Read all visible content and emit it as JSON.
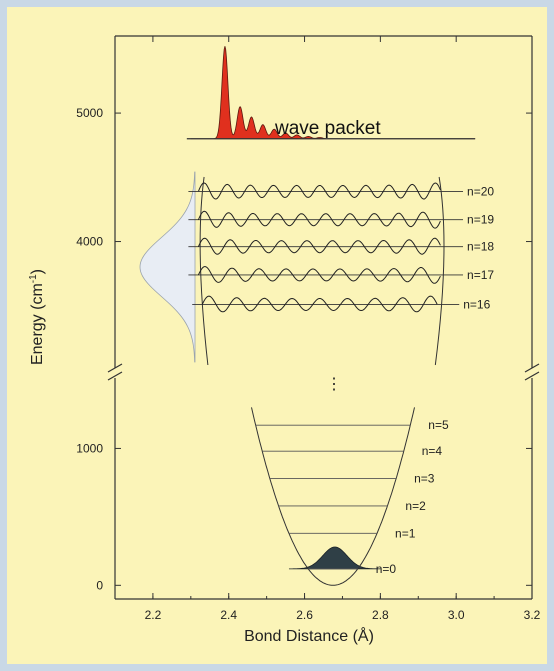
{
  "colors": {
    "page_border": "#c9d8e6",
    "panel_background": "#fbf4b8",
    "wave_packet_fill": "#e0301e",
    "ground_state_fill": "#2f3f46",
    "probe_profile_fill": "#e8edf4",
    "line": "#333333"
  },
  "chart_data": {
    "type": "line",
    "title": "",
    "xlabel": "Bond Distance (Å)",
    "ylabel": "Energy (cm",
    "ylabel_superscript": "-1",
    "ylabel_close": ")",
    "xlim": [
      2.1,
      3.2
    ],
    "x_ticks": [
      "2.2",
      "2.4",
      "2.6",
      "2.8",
      "3.0",
      "3.2"
    ],
    "y_axis_broken": true,
    "y_ticks_lower": [
      "0",
      "1000"
    ],
    "y_ticks_upper": [
      "4000",
      "5000"
    ],
    "ylim_lower": [
      -100,
      1500
    ],
    "ylim_upper": [
      3000,
      5600
    ],
    "annotation": "wave packet",
    "continuation_marker": "⋮",
    "wave_packet": {
      "baseline_energy": 4800,
      "x_start": 2.3,
      "x_end": 3.05,
      "peaks": [
        {
          "x": 2.39,
          "height": 720
        },
        {
          "x": 2.43,
          "height": 250
        },
        {
          "x": 2.46,
          "height": 170
        },
        {
          "x": 2.49,
          "height": 110
        },
        {
          "x": 2.52,
          "height": 75
        },
        {
          "x": 2.55,
          "height": 45
        },
        {
          "x": 2.58,
          "height": 30
        },
        {
          "x": 2.61,
          "height": 18
        },
        {
          "x": 2.64,
          "height": 10
        }
      ]
    },
    "upper_levels": [
      {
        "label": "n=20",
        "energy": 4390,
        "x_left": 2.32,
        "x_right": 2.96
      },
      {
        "label": "n=19",
        "energy": 4170,
        "x_left": 2.32,
        "x_right": 2.96
      },
      {
        "label": "n=18",
        "energy": 3960,
        "x_left": 2.32,
        "x_right": 2.96
      },
      {
        "label": "n=17",
        "energy": 3740,
        "x_left": 2.32,
        "x_right": 2.96
      },
      {
        "label": "n=16",
        "energy": 3510,
        "x_left": 2.33,
        "x_right": 2.95
      }
    ],
    "lower_levels": [
      {
        "label": "n=5",
        "energy": 1170,
        "x_left": 2.47,
        "x_right": 2.87
      },
      {
        "label": "n=4",
        "energy": 980,
        "x_left": 2.49,
        "x_right": 2.85
      },
      {
        "label": "n=3",
        "energy": 780,
        "x_left": 2.51,
        "x_right": 2.83
      },
      {
        "label": "n=2",
        "energy": 580,
        "x_left": 2.54,
        "x_right": 2.8
      },
      {
        "label": "n=1",
        "energy": 380,
        "x_left": 2.57,
        "x_right": 2.77
      },
      {
        "label": "n=0",
        "energy": 120,
        "x_left": 2.6,
        "x_right": 2.74
      }
    ],
    "potential_well": {
      "x_min": 2.675,
      "energy_min": 0,
      "x_left_top": 2.46,
      "x_right_top": 2.89,
      "energy_top": 1300
    },
    "ground_state_gaussian": {
      "center": 2.68,
      "width": 0.045,
      "height": 160
    }
  }
}
